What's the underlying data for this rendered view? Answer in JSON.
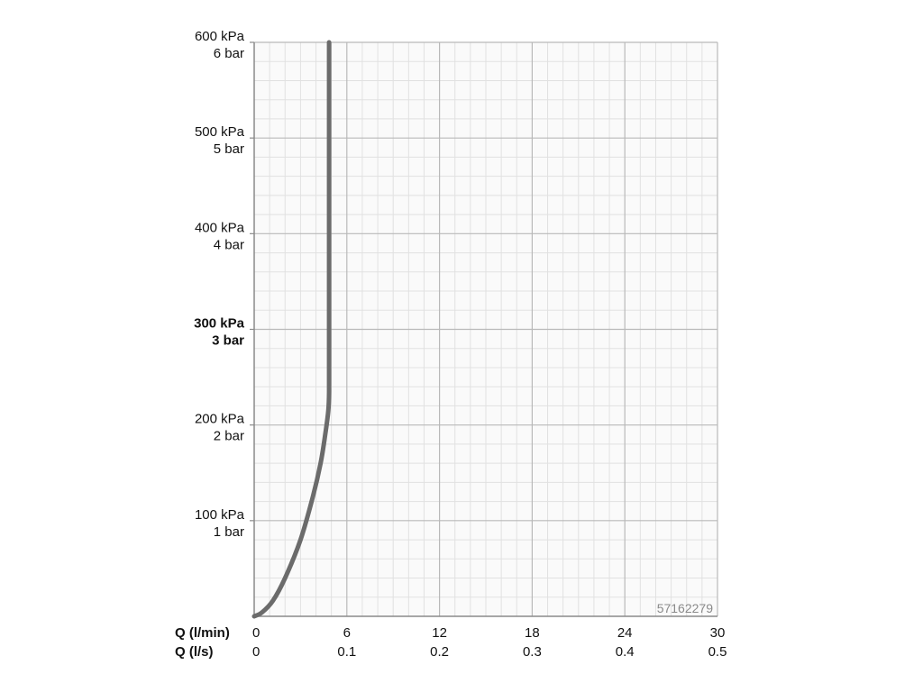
{
  "chart_data": {
    "type": "line",
    "title": "",
    "x_axis_rows": [
      {
        "label": "Q (l/min)",
        "ticks": [
          "0",
          "6",
          "12",
          "18",
          "24",
          "30"
        ]
      },
      {
        "label": "Q (l/s)",
        "ticks": [
          "0",
          "0.1",
          "0.2",
          "0.3",
          "0.4",
          "0.5"
        ]
      }
    ],
    "y_axis": {
      "ticks": [
        {
          "kpa": "100 kPa",
          "bar": "1 bar",
          "value": 100,
          "bold": false
        },
        {
          "kpa": "200 kPa",
          "bar": "2 bar",
          "value": 200,
          "bold": false
        },
        {
          "kpa": "300 kPa",
          "bar": "3 bar",
          "value": 300,
          "bold": true
        },
        {
          "kpa": "400 kPa",
          "bar": "4 bar",
          "value": 400,
          "bold": false
        },
        {
          "kpa": "500 kPa",
          "bar": "5 bar",
          "value": 500,
          "bold": false
        },
        {
          "kpa": "600 kPa",
          "bar": "6 bar",
          "value": 600,
          "bold": false
        }
      ]
    },
    "xlim": [
      0,
      30
    ],
    "ylim": [
      0,
      600
    ],
    "grid": true,
    "series": [
      {
        "color": "#6b6b6b",
        "x": [
          0,
          0.5,
          1.2,
          2.0,
          3.0,
          3.8,
          4.3,
          4.6,
          4.8,
          4.85,
          4.85,
          4.85,
          4.85,
          4.85,
          4.85
        ],
        "y": [
          0,
          4,
          16,
          40,
          80,
          125,
          160,
          190,
          215,
          235,
          280,
          350,
          450,
          550,
          600
        ]
      }
    ],
    "image_id_text": "57162279"
  }
}
